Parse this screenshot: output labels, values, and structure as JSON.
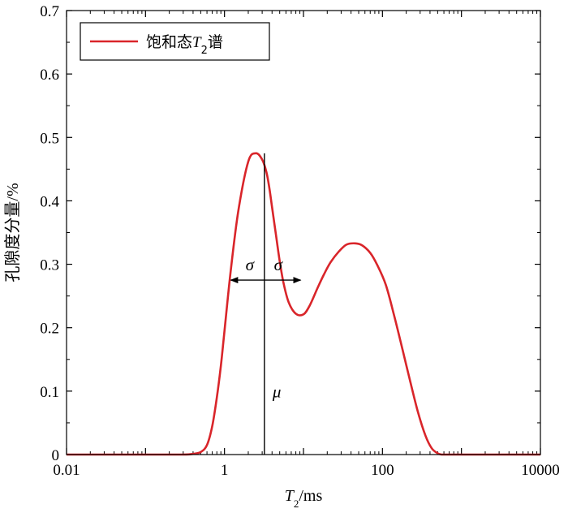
{
  "chart_data": {
    "type": "line",
    "title": "",
    "xlabel": "T2/ms",
    "ylabel": "孔隙度分量/%",
    "xscale": "log",
    "xlim": [
      0.01,
      10000
    ],
    "ylim": [
      0,
      0.7
    ],
    "x_ticks": [
      "0.01",
      "1",
      "100",
      "10000"
    ],
    "y_ticks": [
      "0",
      "0.1",
      "0.2",
      "0.3",
      "0.4",
      "0.5",
      "0.6",
      "0.7"
    ],
    "legend": {
      "position": "top-left",
      "entries": [
        "饱和态T2谱"
      ]
    },
    "grid": false,
    "series": [
      {
        "name": "饱和态T2谱",
        "color": "#d9252a",
        "x": [
          0.01,
          0.1,
          0.3,
          0.4,
          0.5,
          0.6,
          0.7,
          0.8,
          0.9,
          1.0,
          1.2,
          1.5,
          2.0,
          2.5,
          3.0,
          3.4,
          3.7,
          4.0,
          4.5,
          5.0,
          5.6,
          6.5,
          8.0,
          10,
          12,
          15,
          18,
          22,
          28,
          35,
          45,
          55,
          70,
          85,
          110,
          140,
          180,
          220,
          280,
          350,
          420,
          500,
          560,
          620,
          700,
          1000,
          10000
        ],
        "y": [
          0,
          0,
          0,
          0.001,
          0.004,
          0.015,
          0.045,
          0.09,
          0.14,
          0.195,
          0.29,
          0.385,
          0.462,
          0.475,
          0.465,
          0.445,
          0.42,
          0.39,
          0.345,
          0.305,
          0.27,
          0.24,
          0.222,
          0.221,
          0.235,
          0.262,
          0.283,
          0.303,
          0.32,
          0.331,
          0.333,
          0.33,
          0.318,
          0.3,
          0.268,
          0.22,
          0.165,
          0.12,
          0.068,
          0.03,
          0.01,
          0.002,
          0,
          0,
          0,
          0,
          0
        ]
      }
    ],
    "annotations": {
      "sigma_left": "σ",
      "sigma_right": "σ",
      "mu": "μ",
      "mu_x": 3.2,
      "mu_y_top": 0.475,
      "sigma_arrow_y": 0.275,
      "sigma_left_x": 1.2,
      "sigma_right_x": 9.2
    }
  }
}
